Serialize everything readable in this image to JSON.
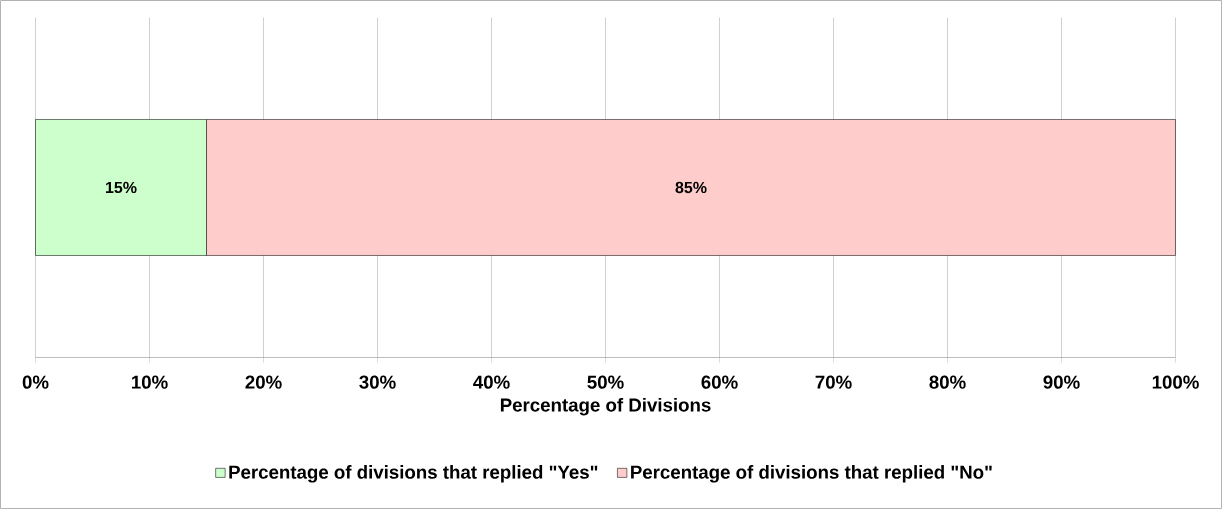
{
  "chart_data": {
    "type": "bar",
    "orientation": "horizontal",
    "stacked": true,
    "xlabel": "Percentage of Divisions",
    "categories": [
      null
    ],
    "series": [
      {
        "name": "Percentage of divisions that replied \"Yes\"",
        "color": "#ccffcc",
        "values": [
          15
        ],
        "value_labels": [
          "15%"
        ]
      },
      {
        "name": "Percentage of divisions that replied \"No\"",
        "color": "#ffcccc",
        "values": [
          85
        ],
        "value_labels": [
          "85%"
        ]
      }
    ],
    "xlim": [
      0,
      100
    ],
    "xticks": [
      {
        "value": 0,
        "label": "0%"
      },
      {
        "value": 10,
        "label": "10%"
      },
      {
        "value": 20,
        "label": "20%"
      },
      {
        "value": 30,
        "label": "30%"
      },
      {
        "value": 40,
        "label": "40%"
      },
      {
        "value": 50,
        "label": "50%"
      },
      {
        "value": 60,
        "label": "60%"
      },
      {
        "value": 70,
        "label": "70%"
      },
      {
        "value": 80,
        "label": "80%"
      },
      {
        "value": 90,
        "label": "90%"
      },
      {
        "value": 100,
        "label": "100%"
      }
    ],
    "grid": "x",
    "legend": "bottom"
  }
}
